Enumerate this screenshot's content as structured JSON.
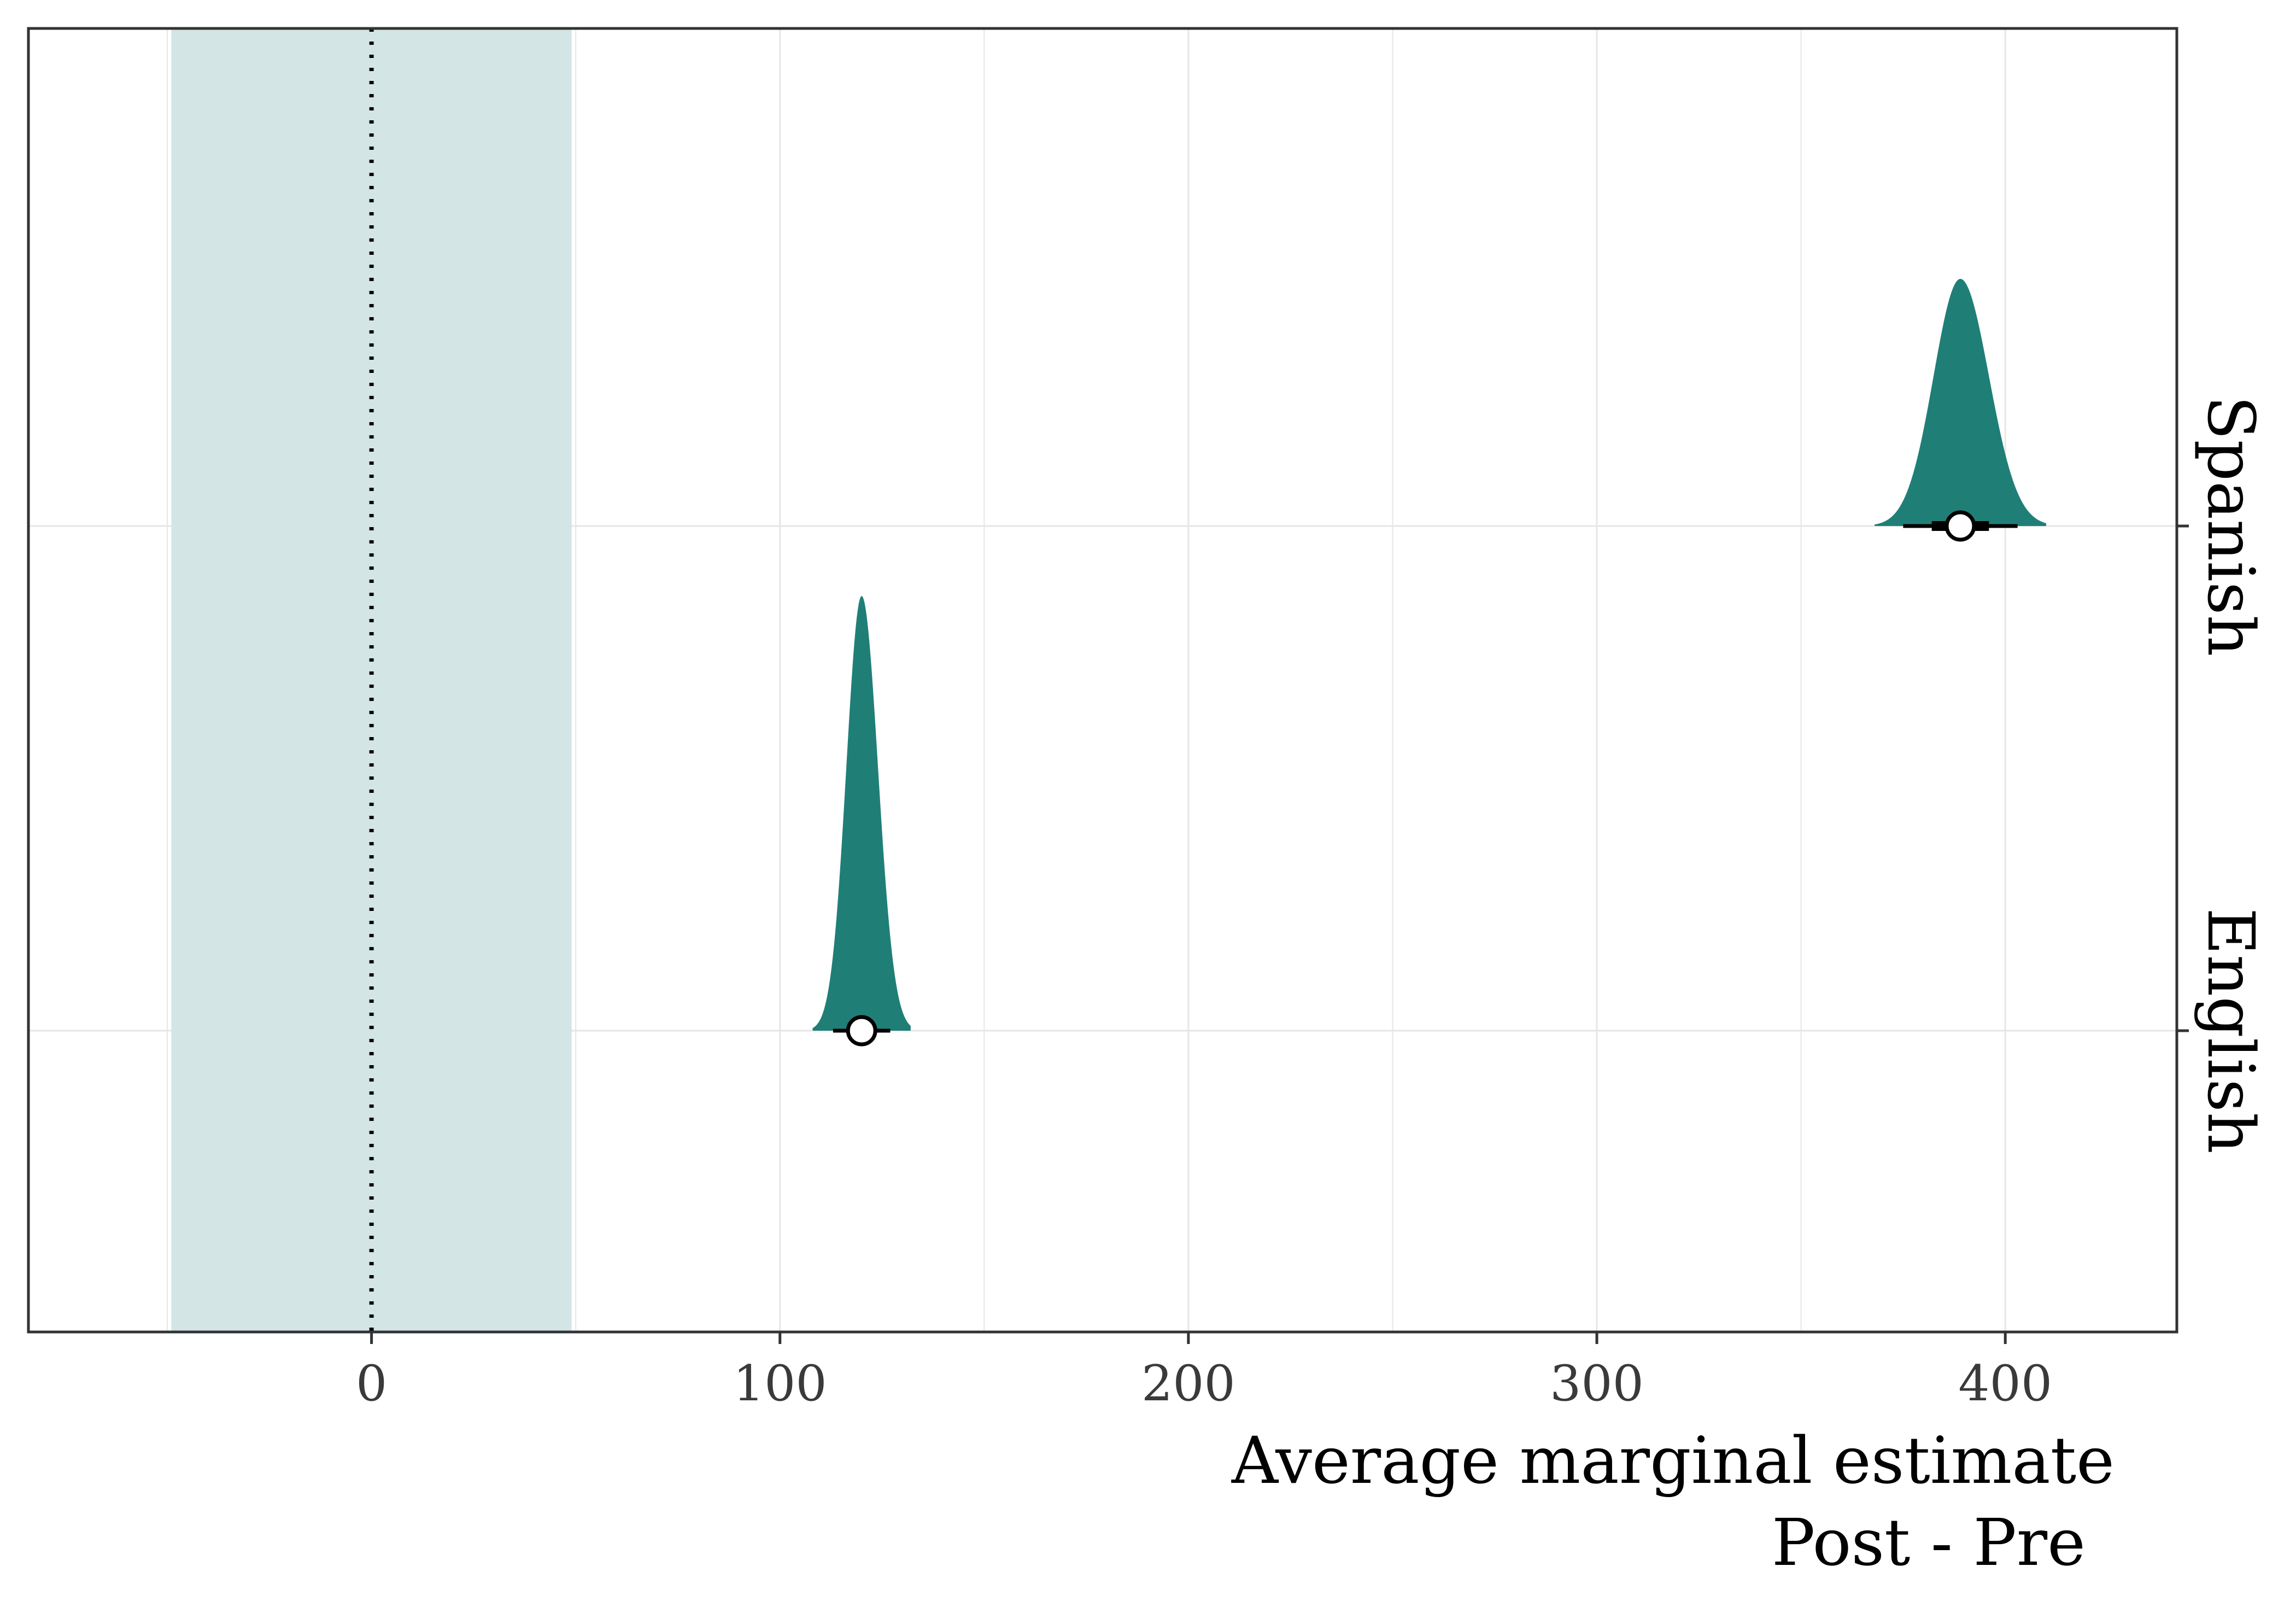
{
  "chart_data": {
    "type": "halfeye",
    "title": "",
    "xlabel": "Average marginal estimate",
    "xlabel_sub": "Post - Pre",
    "ylabel": "",
    "xlim": [
      -84,
      442
    ],
    "x_ticks": [
      0,
      100,
      200,
      300,
      400
    ],
    "x_tick_labels": [
      "0",
      "100",
      "200",
      "300",
      "400"
    ],
    "reference_line": 0,
    "rope": [
      -49,
      49
    ],
    "grid": true,
    "categories": [
      "Spanish",
      "English"
    ],
    "series": [
      {
        "name": "Spanish",
        "point": 389,
        "ci_66": [
          382,
          396
        ],
        "ci_95": [
          375,
          403
        ],
        "density_range": [
          368,
          410
        ],
        "peak": 389
      },
      {
        "name": "English",
        "point": 120,
        "ci_66": [
          117,
          123
        ],
        "ci_95": [
          113,
          127
        ],
        "density_range": [
          108,
          132
        ],
        "peak": 120
      }
    ],
    "colors": {
      "density": "#1f7f77",
      "rope": "#d3e5e4",
      "point_fill": "#ffffff",
      "point_stroke": "#000000",
      "grid": "#e6e6e6",
      "frame": "#333333"
    }
  }
}
